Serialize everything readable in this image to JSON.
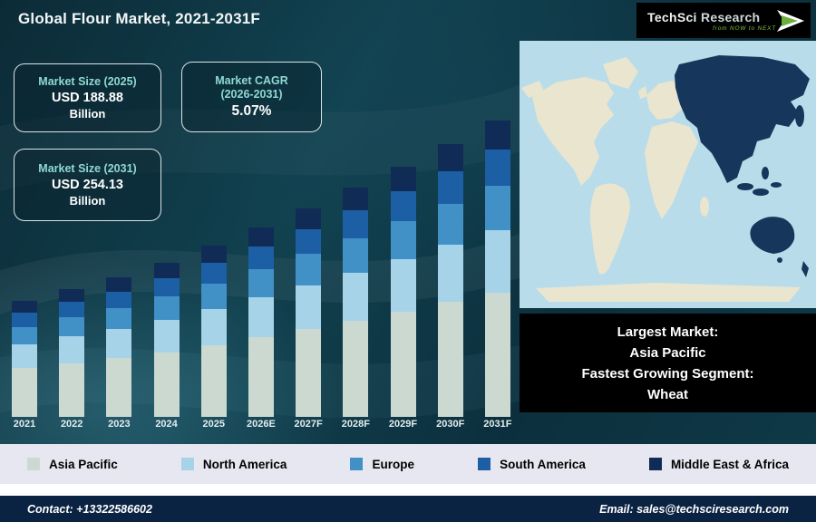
{
  "header": {
    "title": "Global Flour Market, 2021-2031F",
    "logo": {
      "brand_tech": "TechSci",
      "brand_research": "Research",
      "tagline": "from NOW to NEXT"
    }
  },
  "info_boxes": {
    "market_size_2025": {
      "title": "Market Size (2025)",
      "value": "USD 188.88",
      "unit": "Billion"
    },
    "market_cagr": {
      "title_line1": "Market CAGR",
      "title_line2": "(2026-2031)",
      "value": "5.07%"
    },
    "market_size_2031": {
      "title": "Market Size (2031)",
      "value": "USD 254.13",
      "unit": "Billion"
    }
  },
  "map": {
    "ocean_color": "#b9dcea",
    "land_color": "#eae5cf",
    "highlight_color": "#16365c"
  },
  "callout": {
    "line1": "Largest Market:",
    "line2": "Asia Pacific",
    "line3": "Fastest Growing Segment:",
    "line4": "Wheat"
  },
  "legend": {
    "items": [
      {
        "label": "Asia Pacific",
        "color": "#ccd9d1"
      },
      {
        "label": "North America",
        "color": "#a6d3e8"
      },
      {
        "label": "Europe",
        "color": "#4191c6"
      },
      {
        "label": "South America",
        "color": "#1d5fa4"
      },
      {
        "label": "Middle East & Africa",
        "color": "#102c56"
      }
    ]
  },
  "footer": {
    "contact": "Contact: +13322586602",
    "email": "Email: sales@techsciresearch.com"
  },
  "chart_data": {
    "type": "bar",
    "stacked": true,
    "title": "Global Flour Market, 2021-2031F",
    "unit": "USD Billion",
    "categories": [
      "2021",
      "2022",
      "2023",
      "2024",
      "2025",
      "2026E",
      "2027F",
      "2028F",
      "2029F",
      "2030F",
      "2031F"
    ],
    "series": [
      {
        "name": "Asia Pacific",
        "color": "#ccd9d1",
        "values": [
          67.2,
          69.9,
          72.4,
          75.6,
          79.3,
          83.4,
          87.6,
          92.0,
          96.7,
          101.6,
          106.7
        ]
      },
      {
        "name": "North America",
        "color": "#a6d3e8",
        "values": [
          33.6,
          35.0,
          36.2,
          37.8,
          39.7,
          41.7,
          43.8,
          46.0,
          48.3,
          50.8,
          53.4
        ]
      },
      {
        "name": "Europe",
        "color": "#4191c6",
        "values": [
          24.0,
          25.0,
          25.9,
          27.0,
          28.3,
          29.8,
          31.3,
          32.9,
          34.5,
          36.3,
          38.1
        ]
      },
      {
        "name": "South America",
        "color": "#1d5fa4",
        "values": [
          19.2,
          20.0,
          20.7,
          21.6,
          22.7,
          23.8,
          25.0,
          26.3,
          27.6,
          29.0,
          30.5
        ]
      },
      {
        "name": "Middle East & Africa",
        "color": "#102c56",
        "values": [
          16.0,
          16.6,
          17.2,
          18.0,
          18.9,
          19.8,
          20.8,
          21.9,
          23.0,
          24.2,
          25.4
        ]
      }
    ],
    "ylim": [
      100,
      260
    ],
    "grid": false,
    "legend_position": "bottom",
    "annotations": [
      "Market Size (2025): USD 188.88 Billion",
      "Market CAGR (2026-2031): 5.07%",
      "Market Size (2031): USD 254.13 Billion",
      "Largest Market: Asia Pacific",
      "Fastest Growing Segment: Wheat"
    ]
  }
}
